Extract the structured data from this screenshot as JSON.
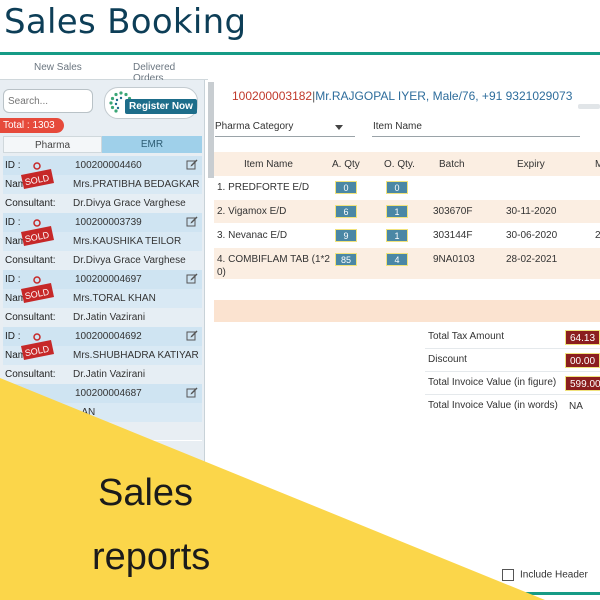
{
  "app": {
    "title": "Sales Booking"
  },
  "top_tabs": [
    {
      "label": "New Sales"
    },
    {
      "label": "Delivered Orders"
    }
  ],
  "sidebar": {
    "search_placeholder": "Search...",
    "register_button": "Register Now",
    "total_badge": "Total : 1303",
    "tabs": [
      {
        "label": "Pharma"
      },
      {
        "label": "EMR"
      }
    ],
    "labels": {
      "id": "ID :",
      "name": "Name",
      "consultant": "Consultant:"
    },
    "patients": [
      {
        "id": "100200004460",
        "name": "Mrs.PRATIBHA BEDAGKAR",
        "consultant": "Dr.Divya Grace Varghese",
        "status": "SOLD"
      },
      {
        "id": "100200003739",
        "name": "Mrs.KAUSHIKA TEILOR",
        "consultant": "Dr.Divya Grace Varghese",
        "status": "SOLD"
      },
      {
        "id": "100200004697",
        "name": "Mrs.TORAL KHAN",
        "consultant": "Dr.Jatin Vazirani",
        "status": "SOLD"
      },
      {
        "id": "100200004692",
        "name": "Mrs.SHUBHADRA KATIYAR",
        "consultant": "Dr.Jatin Vazirani",
        "status": "SOLD"
      },
      {
        "id": "100200004687",
        "name": "...AN",
        "consultant": "",
        "status": ""
      }
    ]
  },
  "patient_header": {
    "id": "100200003182",
    "separator": "|",
    "info": "Mr.RAJGOPAL IYER, Male/76, +91 9321029073"
  },
  "filters": {
    "pharma_category": "Pharma Category",
    "item_name": "Item Name"
  },
  "items_table": {
    "headers": {
      "item_name": "Item Name",
      "a_qty": "A. Qty",
      "o_qty": "O. Qty.",
      "batch": "Batch",
      "expiry": "Expiry",
      "more": "M"
    },
    "rows": [
      {
        "item": "1. PREDFORTE E/D",
        "a_qty": "0",
        "o_qty": "0",
        "batch": "",
        "expiry": "",
        "more": ""
      },
      {
        "item": "2. Vigamox E/D",
        "a_qty": "6",
        "o_qty": "1",
        "batch": "303670F",
        "expiry": "30-11-2020",
        "more": ""
      },
      {
        "item": "3. Nevanac E/D",
        "a_qty": "9",
        "o_qty": "1",
        "batch": "303144F",
        "expiry": "30-06-2020",
        "more": "2"
      },
      {
        "item": "4. COMBIFLAM TAB (1*2",
        "item_line2": "0)",
        "a_qty": "85",
        "o_qty": "4",
        "batch": "9NA0103",
        "expiry": "28-02-2021",
        "more": ""
      }
    ]
  },
  "totals": {
    "tax_label": "Total Tax Amount",
    "tax_value": "64.13",
    "discount_label": "Discount",
    "discount_value": "00.00",
    "invoice_figure_label": "Total Invoice Value (in figure)",
    "invoice_figure_value": "599.00",
    "invoice_words_label": "Total Invoice Value (in words)",
    "invoice_words_value": "NA"
  },
  "footer": {
    "include_header": "Include Header"
  },
  "promo": {
    "line1": "Sales",
    "line2": "reports"
  },
  "colors": {
    "brand_teal": "#169b86",
    "title_navy": "#0d3e57",
    "promo_yellow": "#fbd64a",
    "badge_red": "#e64a3b",
    "sold_red": "#c62828",
    "value_maroon": "#8b1e1e"
  }
}
